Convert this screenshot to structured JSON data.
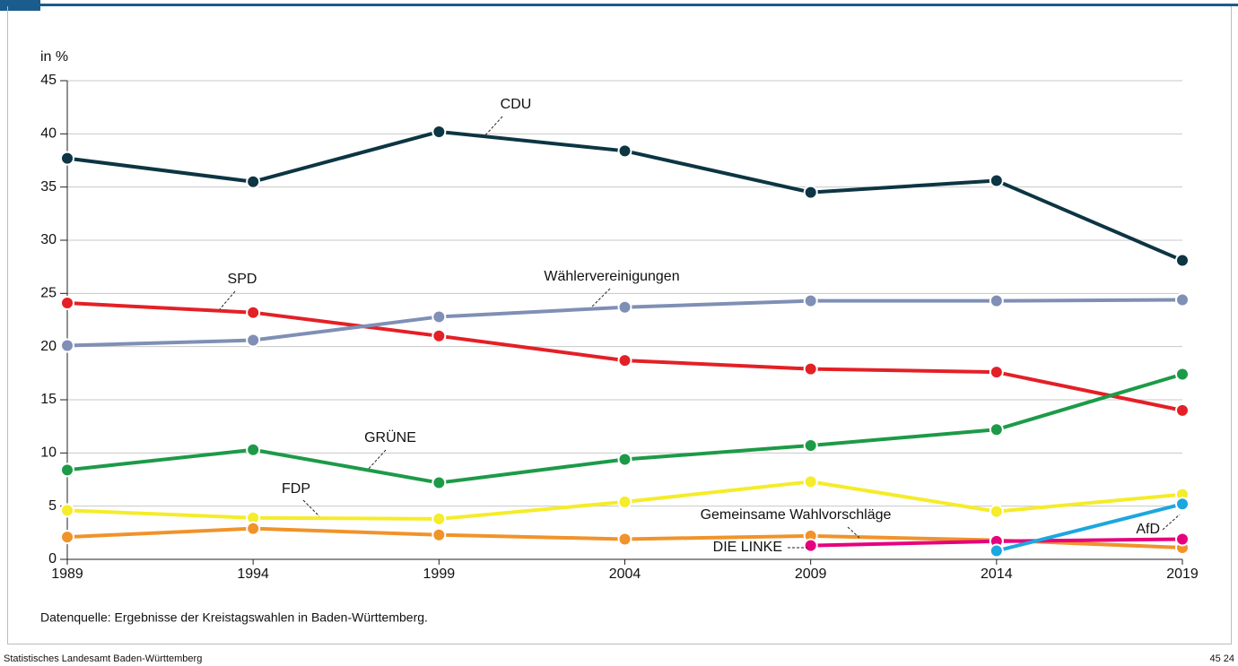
{
  "chart_data": {
    "type": "line",
    "y_label": "in %",
    "x": [
      1989,
      1994,
      1999,
      2004,
      2009,
      2014,
      2019
    ],
    "xlim": [
      1989,
      2019
    ],
    "xticks": [
      1989,
      1994,
      1999,
      2004,
      2009,
      2014,
      2019
    ],
    "ylim": [
      0,
      45
    ],
    "yticks": [
      0,
      5,
      10,
      15,
      20,
      25,
      30,
      35,
      40,
      45
    ],
    "grid": true,
    "series": [
      {
        "name": "CDU",
        "color": "#0d3543",
        "values": [
          37.7,
          35.5,
          40.2,
          38.4,
          34.5,
          35.6,
          28.1
        ]
      },
      {
        "name": "SPD",
        "color": "#e32026",
        "values": [
          24.1,
          23.2,
          21.0,
          18.7,
          17.9,
          17.6,
          14.0
        ]
      },
      {
        "name": "Wählervereinigungen",
        "color": "#7f8fb5",
        "values": [
          20.1,
          20.6,
          22.8,
          23.7,
          24.3,
          24.3,
          24.4
        ]
      },
      {
        "name": "GRÜNE",
        "color": "#1d9a48",
        "values": [
          8.4,
          10.3,
          7.2,
          9.4,
          10.7,
          12.2,
          17.4
        ]
      },
      {
        "name": "FDP",
        "color": "#f5ec2a",
        "values": [
          4.6,
          3.9,
          3.8,
          5.4,
          7.3,
          4.5,
          6.1
        ]
      },
      {
        "name": "Gemeinsame Wahlvorschläge",
        "color": "#f0932a",
        "values": [
          2.1,
          2.9,
          2.3,
          1.9,
          2.2,
          1.8,
          1.1
        ]
      },
      {
        "name": "DIE LINKE",
        "color": "#e6007e",
        "values": [
          null,
          null,
          null,
          null,
          1.3,
          1.7,
          1.9
        ]
      },
      {
        "name": "AfD",
        "color": "#1ba7df",
        "values": [
          null,
          null,
          null,
          null,
          null,
          0.8,
          5.2
        ]
      }
    ],
    "source": "Datenquelle: Ergebnisse der Kreistagswahlen in Baden-Württemberg."
  },
  "footer": {
    "left": "Statistisches Landesamt Baden-Württemberg",
    "right": "45 24"
  }
}
